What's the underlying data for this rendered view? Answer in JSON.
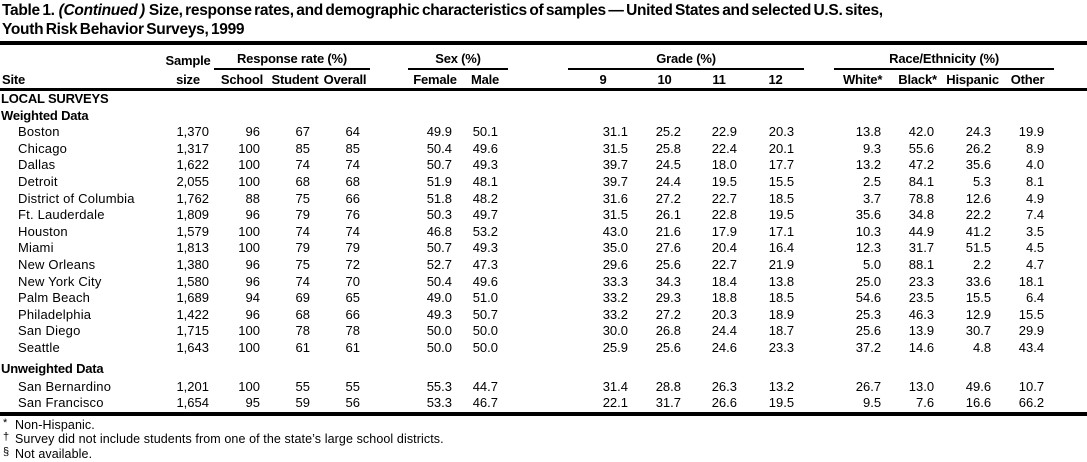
{
  "title": {
    "prefix": "Table 1.",
    "continued": "(Continued )",
    "rest": "Size, response rates, and demographic characteristics of samples — United States and selected U.S. sites,",
    "line2": "Youth Risk Behavior Surveys, 1999"
  },
  "header": {
    "site": "Site",
    "sample_top": "Sample",
    "sample_bottom": "size",
    "groups": [
      {
        "label": "Response rate (%)",
        "cols": [
          "School",
          "Student",
          "Overall"
        ]
      },
      {
        "label": "Sex (%)",
        "cols": [
          "Female",
          "Male"
        ]
      },
      {
        "label": "Grade (%)",
        "cols": [
          "9",
          "10",
          "11",
          "12"
        ]
      },
      {
        "label": "Race/Ethnicity (%)",
        "cols": [
          "White*",
          "Black*",
          "Hispanic",
          "Other"
        ]
      }
    ]
  },
  "column_keys": [
    "sample-size",
    "school-response-rate",
    "student-response-rate",
    "overall-response-rate",
    "female-pct",
    "male-pct",
    "grade-9-pct",
    "grade-10-pct",
    "grade-11-pct",
    "grade-12-pct",
    "white-pct",
    "black-pct",
    "hispanic-pct",
    "other-pct"
  ],
  "sections": [
    {
      "label": "LOCAL SURVEYS",
      "rows": []
    },
    {
      "label": "Weighted Data",
      "rows": [
        {
          "site": "Boston",
          "values": [
            "1,370",
            "96",
            "67",
            "64",
            "49.9",
            "50.1",
            "31.1",
            "25.2",
            "22.9",
            "20.3",
            "13.8",
            "42.0",
            "24.3",
            "19.9"
          ]
        },
        {
          "site": "Chicago",
          "values": [
            "1,317",
            "100",
            "85",
            "85",
            "50.4",
            "49.6",
            "31.5",
            "25.8",
            "22.4",
            "20.1",
            "9.3",
            "55.6",
            "26.2",
            "8.9"
          ]
        },
        {
          "site": "Dallas",
          "values": [
            "1,622",
            "100",
            "74",
            "74",
            "50.7",
            "49.3",
            "39.7",
            "24.5",
            "18.0",
            "17.7",
            "13.2",
            "47.2",
            "35.6",
            "4.0"
          ]
        },
        {
          "site": "Detroit",
          "values": [
            "2,055",
            "100",
            "68",
            "68",
            "51.9",
            "48.1",
            "39.7",
            "24.4",
            "19.5",
            "15.5",
            "2.5",
            "84.1",
            "5.3",
            "8.1"
          ]
        },
        {
          "site": "District of Columbia",
          "values": [
            "1,762",
            "88",
            "75",
            "66",
            "51.8",
            "48.2",
            "31.6",
            "27.2",
            "22.7",
            "18.5",
            "3.7",
            "78.8",
            "12.6",
            "4.9"
          ]
        },
        {
          "site": "Ft. Lauderdale",
          "values": [
            "1,809",
            "96",
            "79",
            "76",
            "50.3",
            "49.7",
            "31.5",
            "26.1",
            "22.8",
            "19.5",
            "35.6",
            "34.8",
            "22.2",
            "7.4"
          ]
        },
        {
          "site": "Houston",
          "values": [
            "1,579",
            "100",
            "74",
            "74",
            "46.8",
            "53.2",
            "43.0",
            "21.6",
            "17.9",
            "17.1",
            "10.3",
            "44.9",
            "41.2",
            "3.5"
          ]
        },
        {
          "site": "Miami",
          "values": [
            "1,813",
            "100",
            "79",
            "79",
            "50.7",
            "49.3",
            "35.0",
            "27.6",
            "20.4",
            "16.4",
            "12.3",
            "31.7",
            "51.5",
            "4.5"
          ]
        },
        {
          "site": "New Orleans",
          "values": [
            "1,380",
            "96",
            "75",
            "72",
            "52.7",
            "47.3",
            "29.6",
            "25.6",
            "22.7",
            "21.9",
            "5.0",
            "88.1",
            "2.2",
            "4.7"
          ]
        },
        {
          "site": "New York City",
          "values": [
            "1,580",
            "96",
            "74",
            "70",
            "50.4",
            "49.6",
            "33.3",
            "34.3",
            "18.4",
            "13.8",
            "25.0",
            "23.3",
            "33.6",
            "18.1"
          ]
        },
        {
          "site": "Palm Beach",
          "values": [
            "1,689",
            "94",
            "69",
            "65",
            "49.0",
            "51.0",
            "33.2",
            "29.3",
            "18.8",
            "18.5",
            "54.6",
            "23.5",
            "15.5",
            "6.4"
          ]
        },
        {
          "site": "Philadelphia",
          "values": [
            "1,422",
            "96",
            "68",
            "66",
            "49.3",
            "50.7",
            "33.2",
            "27.2",
            "20.3",
            "18.9",
            "25.3",
            "46.3",
            "12.9",
            "15.5"
          ]
        },
        {
          "site": "San Diego",
          "values": [
            "1,715",
            "100",
            "78",
            "78",
            "50.0",
            "50.0",
            "30.0",
            "26.8",
            "24.4",
            "18.7",
            "25.6",
            "13.9",
            "30.7",
            "29.9"
          ]
        },
        {
          "site": "Seattle",
          "values": [
            "1,643",
            "100",
            "61",
            "61",
            "50.0",
            "50.0",
            "25.9",
            "25.6",
            "24.6",
            "23.3",
            "37.2",
            "14.6",
            "4.8",
            "43.4"
          ]
        }
      ]
    },
    {
      "label": "Unweighted Data",
      "rows": [
        {
          "site": "San Bernardino",
          "values": [
            "1,201",
            "100",
            "55",
            "55",
            "55.3",
            "44.7",
            "31.4",
            "28.8",
            "26.3",
            "13.2",
            "26.7",
            "13.0",
            "49.6",
            "10.7"
          ]
        },
        {
          "site": "San Francisco",
          "values": [
            "1,654",
            "95",
            "59",
            "56",
            "53.3",
            "46.7",
            "22.1",
            "31.7",
            "26.6",
            "19.5",
            "9.5",
            "7.6",
            "16.6",
            "66.2"
          ]
        }
      ]
    }
  ],
  "footnotes": [
    {
      "symbol": "*",
      "text": "Non-Hispanic."
    },
    {
      "symbol": "†",
      "text": "Survey did not include students from one of the state’s large school districts."
    },
    {
      "symbol": "§",
      "text": "Not available."
    }
  ]
}
